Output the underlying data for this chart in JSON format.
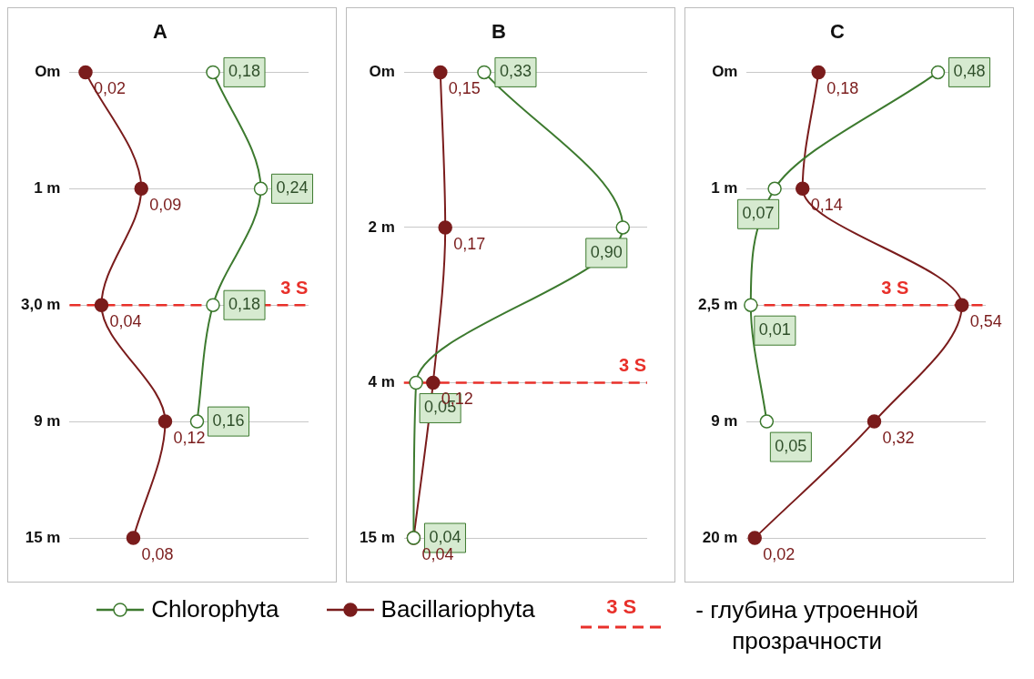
{
  "chart_data": [
    {
      "type": "line",
      "title": "A",
      "orientation": "horizontal",
      "categories": [
        "Om",
        "1 m",
        "3,0 m",
        "9 m",
        "15 m"
      ],
      "series": [
        {
          "name": "Chlorophyta",
          "color": "#3d7a2f",
          "values": [
            0.18,
            0.24,
            0.18,
            0.16,
            null
          ],
          "value_labels": [
            "0,18",
            "0,24",
            "0,18",
            "0,16",
            null
          ]
        },
        {
          "name": "Bacillariophyta",
          "color": "#7a1c1c",
          "values": [
            0.02,
            0.09,
            0.04,
            0.12,
            0.08
          ],
          "value_labels": [
            "0,02",
            "0,09",
            "0,04",
            "0,12",
            "0,08"
          ]
        }
      ],
      "ref_lines": [
        {
          "axis": "y",
          "value": "3,0 m",
          "label": "3 S",
          "color": "#e8302a",
          "line_style": "dashed"
        }
      ],
      "annotations": [
        "- глубина утроенной прозрачности"
      ],
      "grid": "y",
      "tick_labels": "y",
      "marker": "circle",
      "legend": "bottom"
    },
    {
      "type": "line",
      "title": "B",
      "orientation": "horizontal",
      "categories": [
        "Om",
        "2 m",
        "4 m",
        "15 m"
      ],
      "series": [
        {
          "color": "#3d7a2f",
          "values": [
            0.33,
            0.9,
            0.05,
            0.04
          ],
          "value_labels": [
            "0,33",
            "0,90",
            "0,05",
            "0,04"
          ]
        },
        {
          "color": "#7a1c1c",
          "values": [
            0.15,
            0.17,
            0.12,
            0.04
          ],
          "value_labels": [
            "0,15",
            "0,17",
            "0,12",
            "0,04"
          ]
        }
      ],
      "ref_lines": [
        {
          "axis": "y",
          "value": "4 m",
          "label": "3 S",
          "color": "#e8302a",
          "line_style": "dashed"
        }
      ],
      "grid": "y",
      "tick_labels": "y",
      "marker": "circle"
    },
    {
      "type": "line",
      "title": "C",
      "orientation": "horizontal",
      "categories": [
        "Om",
        "1 m",
        "2,5 m",
        "9 m",
        "20 m"
      ],
      "series": [
        {
          "color": "#3d7a2f",
          "values": [
            0.48,
            0.07,
            0.01,
            0.05,
            null
          ],
          "value_labels": [
            "0,48",
            "0,07",
            "0,01",
            "0,05",
            null
          ]
        },
        {
          "color": "#7a1c1c",
          "values": [
            0.18,
            0.14,
            0.54,
            0.32,
            0.02
          ],
          "value_labels": [
            "0,18",
            "0,14",
            "0,54",
            "0,32",
            "0,02"
          ]
        }
      ],
      "ref_lines": [
        {
          "axis": "y",
          "value": "2,5 m",
          "label": "3 S",
          "color": "#e8302a",
          "line_style": "dashed"
        }
      ],
      "grid": "y",
      "tick_labels": "y",
      "marker": "circle"
    }
  ]
}
